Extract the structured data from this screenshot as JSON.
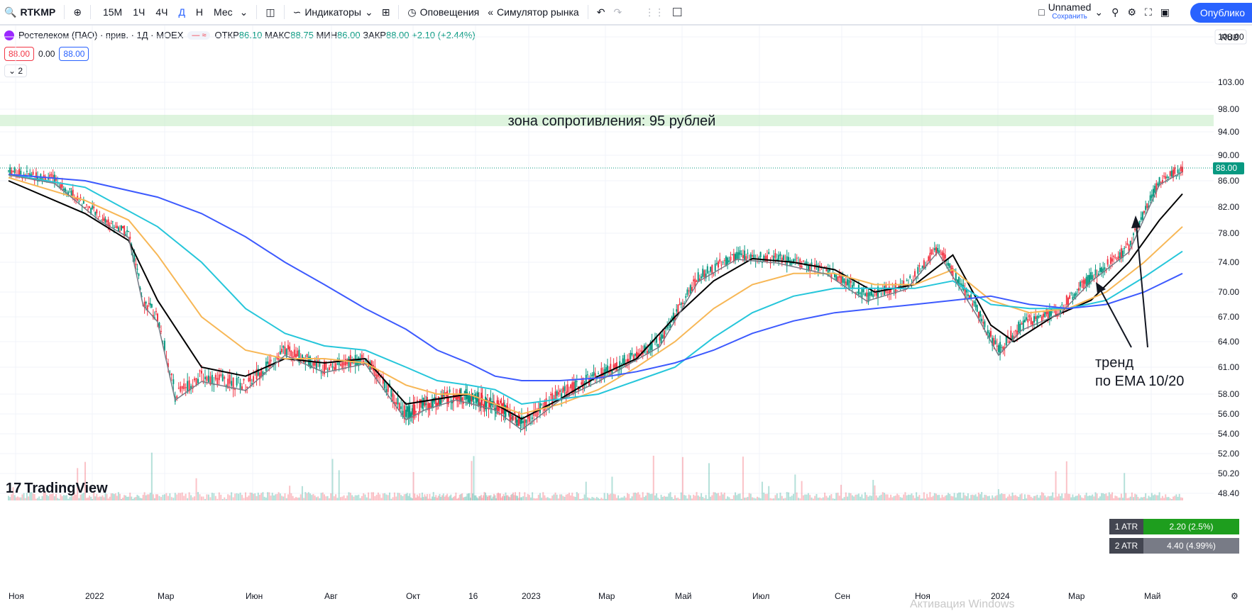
{
  "toolbar": {
    "symbol": "RTKMP",
    "intervals": [
      "15М",
      "1Ч",
      "4Ч",
      "Д",
      "Н",
      "Мес"
    ],
    "active_interval": "Д",
    "indicators": "Индикаторы",
    "alerts": "Оповещения",
    "replay": "Симулятор рынка",
    "layout_name": "Unnamed",
    "layout_save": "Сохранить",
    "publish": "Опублико"
  },
  "legend": {
    "title": "Ростелеком (ПАО) · прив. · 1Д · MOEX",
    "o_label": "ОТКР",
    "o": "86.10",
    "h_label": "МАКС",
    "h": "88.75",
    "l_label": "МИН",
    "l": "86.00",
    "c_label": "ЗАКР",
    "c": "88.00",
    "change": "+2.10 (+2.44%)",
    "sell": "88.00",
    "spread": "0.00",
    "buy": "88.00",
    "collapse": "2"
  },
  "price_axis": {
    "currency": "RUB",
    "ticks": [
      "108.00",
      "103.00",
      "98.00",
      "94.00",
      "90.00",
      "86.00",
      "82.00",
      "78.00",
      "74.00",
      "70.00",
      "67.00",
      "64.00",
      "61.00",
      "58.00",
      "56.00",
      "54.00",
      "52.00",
      "50.20",
      "48.40"
    ],
    "last_price": "88.00"
  },
  "time_axis": {
    "ticks": [
      "Ноя",
      "2022",
      "Мар",
      "Июн",
      "Авг",
      "Окт",
      "16",
      "2023",
      "Мар",
      "Май",
      "Июл",
      "Сен",
      "Ноя",
      "2024",
      "Мар",
      "Май"
    ]
  },
  "annotations": {
    "zone": "зона сопротивления: 95 рублей",
    "trend_line1": "тренд",
    "trend_line2": "по EMA 10/20"
  },
  "atr": [
    {
      "label": "1 ATR",
      "value": "2.20 (2.5%)",
      "color": "#1e9e1e"
    },
    {
      "label": "2 ATR",
      "value": "4.40 (4.99%)",
      "color": "#787b86"
    }
  ],
  "branding": {
    "logo": "TradingView",
    "watermark": "Активация Windows"
  },
  "colors": {
    "up": "#089981",
    "down": "#f23645",
    "ema10": "#787b86",
    "ema20": "#000000",
    "ema50": "#f7b756",
    "ema100": "#26c6da",
    "ema200": "#3d5afe",
    "zone": "#c8ecc8"
  },
  "chart_data": {
    "type": "line",
    "x": [
      "Ноя",
      "2022",
      "Мар",
      "Июн",
      "Авг",
      "Окт",
      "16",
      "2023",
      "Мар",
      "Май",
      "Июл",
      "Сен",
      "Ноя",
      "2024",
      "Мар",
      "Май"
    ],
    "ylim": [
      48.4,
      110
    ],
    "resistance_zone": [
      95,
      97
    ],
    "series": [
      {
        "name": "",
        "points": [
          [
            0,
            87.5
          ],
          [
            0.6,
            86.2
          ],
          [
            1.2,
            80.5
          ],
          [
            1.6,
            78
          ],
          [
            1.8,
            69
          ],
          [
            2.0,
            67
          ],
          [
            2.2,
            58
          ],
          [
            2.5,
            60
          ],
          [
            3,
            59
          ],
          [
            3.5,
            63
          ],
          [
            4,
            61
          ],
          [
            4.5,
            62
          ],
          [
            5,
            56
          ],
          [
            5.3,
            57
          ],
          [
            5.8,
            58
          ],
          [
            6.5,
            57
          ],
          [
            7,
            55
          ],
          [
            7.5,
            58
          ],
          [
            8,
            60
          ],
          [
            8.8,
            64
          ],
          [
            9.3,
            72
          ],
          [
            9.8,
            75
          ],
          [
            10.3,
            74.5
          ],
          [
            10.9,
            73
          ],
          [
            11.4,
            69.5
          ],
          [
            11.9,
            71
          ],
          [
            12.3,
            76
          ],
          [
            12.8,
            68
          ],
          [
            13.1,
            63
          ],
          [
            13.4,
            66
          ],
          [
            13.9,
            68
          ],
          [
            14.3,
            72
          ],
          [
            14.8,
            76
          ],
          [
            15.2,
            86
          ],
          [
            15.5,
            88
          ]
        ]
      },
      {
        "name": "",
        "points": [
          [
            0,
            86
          ],
          [
            1,
            81
          ],
          [
            1.6,
            77
          ],
          [
            2,
            69
          ],
          [
            2.5,
            61
          ],
          [
            3,
            60
          ],
          [
            3.5,
            62
          ],
          [
            4,
            61.5
          ],
          [
            4.5,
            62
          ],
          [
            5,
            57
          ],
          [
            5.5,
            57.5
          ],
          [
            6,
            58
          ],
          [
            6.5,
            57
          ],
          [
            7,
            55.5
          ],
          [
            7.5,
            57.5
          ],
          [
            8,
            60
          ],
          [
            8.5,
            62
          ],
          [
            9,
            67
          ],
          [
            9.5,
            71.5
          ],
          [
            10,
            74.5
          ],
          [
            10.5,
            74
          ],
          [
            11,
            73
          ],
          [
            11.5,
            70
          ],
          [
            12,
            71
          ],
          [
            12.5,
            75
          ],
          [
            13,
            66
          ],
          [
            13.3,
            64
          ],
          [
            13.8,
            67
          ],
          [
            14.3,
            69
          ],
          [
            14.8,
            74
          ],
          [
            15.2,
            80
          ],
          [
            15.5,
            84
          ]
        ]
      },
      {
        "name": "",
        "points": [
          [
            0,
            86.5
          ],
          [
            1,
            83
          ],
          [
            1.6,
            80
          ],
          [
            2,
            75
          ],
          [
            2.5,
            67
          ],
          [
            3,
            63
          ],
          [
            3.5,
            62
          ],
          [
            4,
            62
          ],
          [
            4.5,
            61.5
          ],
          [
            5,
            59
          ],
          [
            5.5,
            58
          ],
          [
            6,
            58
          ],
          [
            6.5,
            57
          ],
          [
            7,
            56
          ],
          [
            7.5,
            57
          ],
          [
            8,
            58.5
          ],
          [
            8.5,
            61
          ],
          [
            9,
            64
          ],
          [
            9.5,
            68
          ],
          [
            10,
            71
          ],
          [
            10.5,
            72.5
          ],
          [
            11,
            72.5
          ],
          [
            11.5,
            71
          ],
          [
            12,
            71
          ],
          [
            12.5,
            73
          ],
          [
            13,
            69
          ],
          [
            13.5,
            67.5
          ],
          [
            14,
            68
          ],
          [
            14.5,
            70
          ],
          [
            15,
            74
          ],
          [
            15.5,
            79
          ]
        ]
      },
      {
        "name": "",
        "points": [
          [
            0,
            87
          ],
          [
            1,
            85
          ],
          [
            2,
            79
          ],
          [
            2.5,
            74
          ],
          [
            3,
            68
          ],
          [
            3.5,
            65
          ],
          [
            4,
            63.5
          ],
          [
            4.5,
            63
          ],
          [
            5,
            61
          ],
          [
            5.5,
            59.5
          ],
          [
            6,
            59
          ],
          [
            6.5,
            58.5
          ],
          [
            7,
            57
          ],
          [
            7.5,
            57.5
          ],
          [
            8,
            58
          ],
          [
            8.5,
            59.5
          ],
          [
            9,
            61
          ],
          [
            9.5,
            64.5
          ],
          [
            10,
            67.5
          ],
          [
            10.5,
            69.5
          ],
          [
            11,
            70.5
          ],
          [
            11.5,
            70.5
          ],
          [
            12,
            70.5
          ],
          [
            12.5,
            71.5
          ],
          [
            13,
            68.5
          ],
          [
            13.5,
            68
          ],
          [
            14,
            68
          ],
          [
            14.5,
            69
          ],
          [
            15,
            72
          ],
          [
            15.5,
            75.5
          ]
        ]
      },
      {
        "name": "",
        "points": [
          [
            0,
            87
          ],
          [
            1,
            86
          ],
          [
            2,
            83.5
          ],
          [
            2.5,
            81
          ],
          [
            3,
            77.5
          ],
          [
            3.5,
            74
          ],
          [
            4,
            71
          ],
          [
            4.5,
            68
          ],
          [
            5,
            65.5
          ],
          [
            5.5,
            63
          ],
          [
            6,
            61.5
          ],
          [
            6.5,
            60
          ],
          [
            7,
            59.5
          ],
          [
            7.5,
            59.5
          ],
          [
            8,
            59.8
          ],
          [
            8.5,
            60.5
          ],
          [
            9,
            61.5
          ],
          [
            9.5,
            63
          ],
          [
            10,
            65
          ],
          [
            10.5,
            66.5
          ],
          [
            11,
            67.5
          ],
          [
            11.5,
            68
          ],
          [
            12,
            68.5
          ],
          [
            12.5,
            69
          ],
          [
            13,
            69.5
          ],
          [
            13.5,
            68.5
          ],
          [
            14,
            68
          ],
          [
            14.5,
            68.5
          ],
          [
            15,
            70
          ],
          [
            15.5,
            72.5
          ]
        ]
      }
    ]
  }
}
